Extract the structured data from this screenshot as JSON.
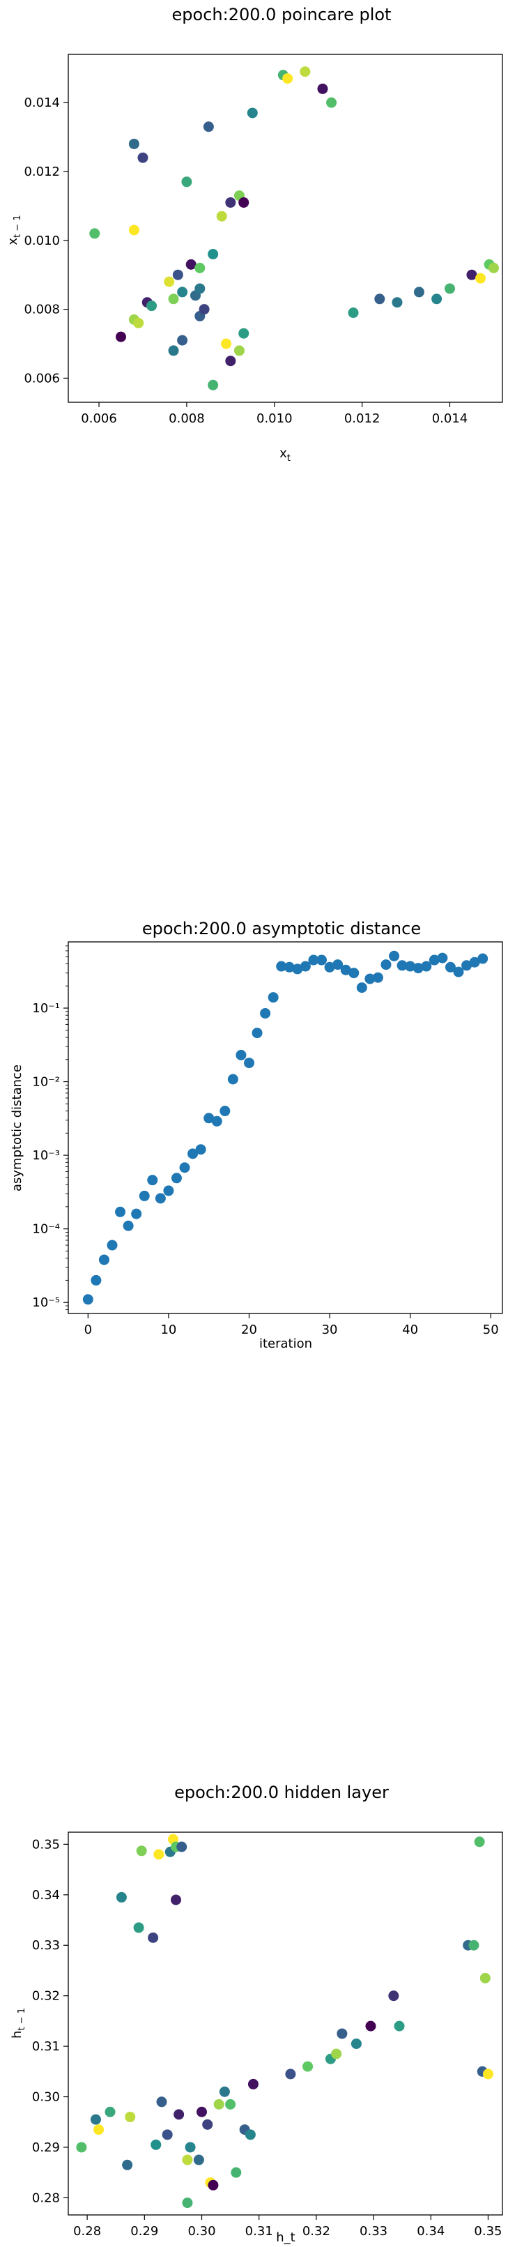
{
  "colors": {
    "viridis": [
      "#440154",
      "#3b528b",
      "#21918c",
      "#5ec962",
      "#fde725"
    ],
    "series_blue": "#1f77b4"
  },
  "chart_data": [
    {
      "type": "scatter",
      "title": "epoch:200.0 poincare plot",
      "xlabel": "x_t",
      "ylabel": "x_{t-1}",
      "xlim": [
        0.0053,
        0.0152
      ],
      "ylim": [
        0.0053,
        0.0154
      ],
      "xticks": [
        "0.006",
        "0.008",
        "0.010",
        "0.012",
        "0.014"
      ],
      "xtick_values": [
        0.006,
        0.008,
        0.01,
        0.012,
        0.014
      ],
      "yticks": [
        "0.006",
        "0.008",
        "0.010",
        "0.012",
        "0.014"
      ],
      "ytick_values": [
        0.006,
        0.008,
        0.01,
        0.012,
        0.014
      ],
      "grid": false,
      "color_scale": "viridis",
      "points": [
        {
          "x": 0.0059,
          "y": 0.0102,
          "c": 0.7
        },
        {
          "x": 0.0065,
          "y": 0.0072,
          "c": 0.0
        },
        {
          "x": 0.0068,
          "y": 0.0128,
          "c": 0.35
        },
        {
          "x": 0.0068,
          "y": 0.0103,
          "c": 1.0
        },
        {
          "x": 0.0068,
          "y": 0.0077,
          "c": 0.85
        },
        {
          "x": 0.0069,
          "y": 0.0076,
          "c": 0.9
        },
        {
          "x": 0.007,
          "y": 0.0124,
          "c": 0.2
        },
        {
          "x": 0.0071,
          "y": 0.0082,
          "c": 0.1
        },
        {
          "x": 0.0072,
          "y": 0.0081,
          "c": 0.55
        },
        {
          "x": 0.0076,
          "y": 0.0088,
          "c": 0.95
        },
        {
          "x": 0.0077,
          "y": 0.0083,
          "c": 0.8
        },
        {
          "x": 0.0077,
          "y": 0.0068,
          "c": 0.4
        },
        {
          "x": 0.0078,
          "y": 0.009,
          "c": 0.25
        },
        {
          "x": 0.0079,
          "y": 0.0085,
          "c": 0.45
        },
        {
          "x": 0.0079,
          "y": 0.0071,
          "c": 0.3
        },
        {
          "x": 0.008,
          "y": 0.0117,
          "c": 0.6
        },
        {
          "x": 0.0081,
          "y": 0.0093,
          "c": 0.05
        },
        {
          "x": 0.0082,
          "y": 0.0084,
          "c": 0.35
        },
        {
          "x": 0.0083,
          "y": 0.0078,
          "c": 0.3
        },
        {
          "x": 0.0083,
          "y": 0.0092,
          "c": 0.75
        },
        {
          "x": 0.0083,
          "y": 0.0086,
          "c": 0.4
        },
        {
          "x": 0.0084,
          "y": 0.008,
          "c": 0.2
        },
        {
          "x": 0.0085,
          "y": 0.0133,
          "c": 0.3
        },
        {
          "x": 0.0086,
          "y": 0.0096,
          "c": 0.5
        },
        {
          "x": 0.0086,
          "y": 0.0058,
          "c": 0.65
        },
        {
          "x": 0.0088,
          "y": 0.0107,
          "c": 0.9
        },
        {
          "x": 0.0089,
          "y": 0.007,
          "c": 1.0
        },
        {
          "x": 0.009,
          "y": 0.0065,
          "c": 0.1
        },
        {
          "x": 0.009,
          "y": 0.0111,
          "c": 0.15
        },
        {
          "x": 0.0092,
          "y": 0.0068,
          "c": 0.85
        },
        {
          "x": 0.0092,
          "y": 0.0113,
          "c": 0.8
        },
        {
          "x": 0.0093,
          "y": 0.0111,
          "c": 0.0
        },
        {
          "x": 0.0093,
          "y": 0.0073,
          "c": 0.55
        },
        {
          "x": 0.0095,
          "y": 0.0137,
          "c": 0.45
        },
        {
          "x": 0.0102,
          "y": 0.0148,
          "c": 0.65
        },
        {
          "x": 0.0103,
          "y": 0.0147,
          "c": 1.0
        },
        {
          "x": 0.0107,
          "y": 0.0149,
          "c": 0.9
        },
        {
          "x": 0.0111,
          "y": 0.0144,
          "c": 0.05
        },
        {
          "x": 0.0113,
          "y": 0.014,
          "c": 0.7
        },
        {
          "x": 0.0118,
          "y": 0.0079,
          "c": 0.55
        },
        {
          "x": 0.0124,
          "y": 0.0083,
          "c": 0.3
        },
        {
          "x": 0.0128,
          "y": 0.0082,
          "c": 0.4
        },
        {
          "x": 0.0133,
          "y": 0.0085,
          "c": 0.35
        },
        {
          "x": 0.0137,
          "y": 0.0083,
          "c": 0.45
        },
        {
          "x": 0.014,
          "y": 0.0086,
          "c": 0.65
        },
        {
          "x": 0.0145,
          "y": 0.009,
          "c": 0.1
        },
        {
          "x": 0.0147,
          "y": 0.0089,
          "c": 1.0
        },
        {
          "x": 0.0149,
          "y": 0.0093,
          "c": 0.75
        },
        {
          "x": 0.015,
          "y": 0.0092,
          "c": 0.85
        }
      ]
    },
    {
      "type": "scatter",
      "title": "epoch:200.0 asymptotic distance",
      "xlabel": "iteration",
      "ylabel": "asymptotic distance",
      "xlim": [
        -2.45,
        51.45
      ],
      "ylim_log10": [
        -5.15,
        -0.1
      ],
      "yscale": "log",
      "xticks": [
        "0",
        "10",
        "20",
        "30",
        "40",
        "50"
      ],
      "xtick_values": [
        0,
        10,
        20,
        30,
        40,
        50
      ],
      "yticks": [
        "10⁻⁵",
        "10⁻⁴",
        "10⁻³",
        "10⁻²",
        "10⁻¹"
      ],
      "ytick_values": [
        1e-05,
        0.0001,
        0.001,
        0.01,
        0.1
      ],
      "grid": false,
      "x": [
        0,
        1,
        2,
        3,
        4,
        5,
        6,
        7,
        8,
        9,
        10,
        11,
        12,
        13,
        14,
        15,
        16,
        17,
        18,
        19,
        20,
        21,
        22,
        23,
        24,
        25,
        26,
        27,
        28,
        29,
        30,
        31,
        32,
        33,
        34,
        35,
        36,
        37,
        38,
        39,
        40,
        41,
        42,
        43,
        44,
        45,
        46,
        47,
        48,
        49
      ],
      "y": [
        1.1e-05,
        2e-05,
        3.8e-05,
        6e-05,
        0.00017,
        0.00011,
        0.00016,
        0.00028,
        0.00046,
        0.00026,
        0.00033,
        0.00049,
        0.00068,
        0.00105,
        0.0012,
        0.0032,
        0.0029,
        0.004,
        0.0108,
        0.023,
        0.018,
        0.046,
        0.085,
        0.14,
        0.37,
        0.36,
        0.34,
        0.37,
        0.45,
        0.45,
        0.36,
        0.39,
        0.33,
        0.3,
        0.19,
        0.25,
        0.26,
        0.39,
        0.51,
        0.38,
        0.37,
        0.35,
        0.37,
        0.45,
        0.48,
        0.36,
        0.31,
        0.38,
        0.42,
        0.47
      ]
    },
    {
      "type": "scatter",
      "title": "epoch:200.0 hidden layer",
      "xlabel": "h_t",
      "ylabel": "h_{t-1}",
      "xlim": [
        0.2767,
        0.3525
      ],
      "ylim": [
        0.2766,
        0.3524
      ],
      "xticks": [
        "0.28",
        "0.29",
        "0.30",
        "0.31",
        "0.32",
        "0.33",
        "0.34",
        "0.35"
      ],
      "xtick_values": [
        0.28,
        0.29,
        0.3,
        0.31,
        0.32,
        0.33,
        0.34,
        0.35
      ],
      "yticks": [
        "0.28",
        "0.29",
        "0.30",
        "0.31",
        "0.32",
        "0.33",
        "0.34",
        "0.35"
      ],
      "ytick_values": [
        0.28,
        0.29,
        0.3,
        0.31,
        0.32,
        0.33,
        0.34,
        0.35
      ],
      "grid": false,
      "color_scale": "viridis",
      "points": [
        {
          "x": 0.279,
          "y": 0.29,
          "c": 0.7
        },
        {
          "x": 0.2815,
          "y": 0.2955,
          "c": 0.4
        },
        {
          "x": 0.282,
          "y": 0.2935,
          "c": 1.0
        },
        {
          "x": 0.284,
          "y": 0.297,
          "c": 0.6
        },
        {
          "x": 0.286,
          "y": 0.3395,
          "c": 0.45
        },
        {
          "x": 0.287,
          "y": 0.2865,
          "c": 0.35
        },
        {
          "x": 0.2875,
          "y": 0.296,
          "c": 0.9
        },
        {
          "x": 0.289,
          "y": 0.3335,
          "c": 0.55
        },
        {
          "x": 0.2895,
          "y": 0.3487,
          "c": 0.8
        },
        {
          "x": 0.2915,
          "y": 0.3315,
          "c": 0.2
        },
        {
          "x": 0.292,
          "y": 0.2905,
          "c": 0.5
        },
        {
          "x": 0.2925,
          "y": 0.348,
          "c": 1.0
        },
        {
          "x": 0.293,
          "y": 0.299,
          "c": 0.3
        },
        {
          "x": 0.294,
          "y": 0.2925,
          "c": 0.25
        },
        {
          "x": 0.2945,
          "y": 0.3485,
          "c": 0.4
        },
        {
          "x": 0.295,
          "y": 0.351,
          "c": 1.0
        },
        {
          "x": 0.2955,
          "y": 0.3495,
          "c": 0.75
        },
        {
          "x": 0.2955,
          "y": 0.339,
          "c": 0.1
        },
        {
          "x": 0.296,
          "y": 0.2965,
          "c": 0.1
        },
        {
          "x": 0.2965,
          "y": 0.3495,
          "c": 0.3
        },
        {
          "x": 0.2975,
          "y": 0.2875,
          "c": 0.9
        },
        {
          "x": 0.2975,
          "y": 0.279,
          "c": 0.65
        },
        {
          "x": 0.298,
          "y": 0.29,
          "c": 0.45
        },
        {
          "x": 0.2995,
          "y": 0.2875,
          "c": 0.35
        },
        {
          "x": 0.3,
          "y": 0.297,
          "c": 0.05
        },
        {
          "x": 0.301,
          "y": 0.2945,
          "c": 0.2
        },
        {
          "x": 0.3015,
          "y": 0.283,
          "c": 1.0
        },
        {
          "x": 0.302,
          "y": 0.2825,
          "c": 0.0
        },
        {
          "x": 0.303,
          "y": 0.2985,
          "c": 0.85
        },
        {
          "x": 0.304,
          "y": 0.301,
          "c": 0.4
        },
        {
          "x": 0.305,
          "y": 0.2985,
          "c": 0.7
        },
        {
          "x": 0.306,
          "y": 0.285,
          "c": 0.65
        },
        {
          "x": 0.3075,
          "y": 0.2935,
          "c": 0.3
        },
        {
          "x": 0.3085,
          "y": 0.2925,
          "c": 0.45
        },
        {
          "x": 0.309,
          "y": 0.3025,
          "c": 0.05
        },
        {
          "x": 0.3155,
          "y": 0.3045,
          "c": 0.25
        },
        {
          "x": 0.3185,
          "y": 0.306,
          "c": 0.75
        },
        {
          "x": 0.3225,
          "y": 0.3075,
          "c": 0.55
        },
        {
          "x": 0.3235,
          "y": 0.3085,
          "c": 0.85
        },
        {
          "x": 0.3245,
          "y": 0.3125,
          "c": 0.3
        },
        {
          "x": 0.327,
          "y": 0.3105,
          "c": 0.45
        },
        {
          "x": 0.3295,
          "y": 0.314,
          "c": 0.0
        },
        {
          "x": 0.3335,
          "y": 0.32,
          "c": 0.15
        },
        {
          "x": 0.3345,
          "y": 0.314,
          "c": 0.55
        },
        {
          "x": 0.3465,
          "y": 0.33,
          "c": 0.35
        },
        {
          "x": 0.3475,
          "y": 0.33,
          "c": 0.65
        },
        {
          "x": 0.3485,
          "y": 0.3505,
          "c": 0.7
        },
        {
          "x": 0.349,
          "y": 0.305,
          "c": 0.3
        },
        {
          "x": 0.3495,
          "y": 0.3235,
          "c": 0.85
        },
        {
          "x": 0.35,
          "y": 0.3045,
          "c": 1.0
        }
      ]
    }
  ]
}
